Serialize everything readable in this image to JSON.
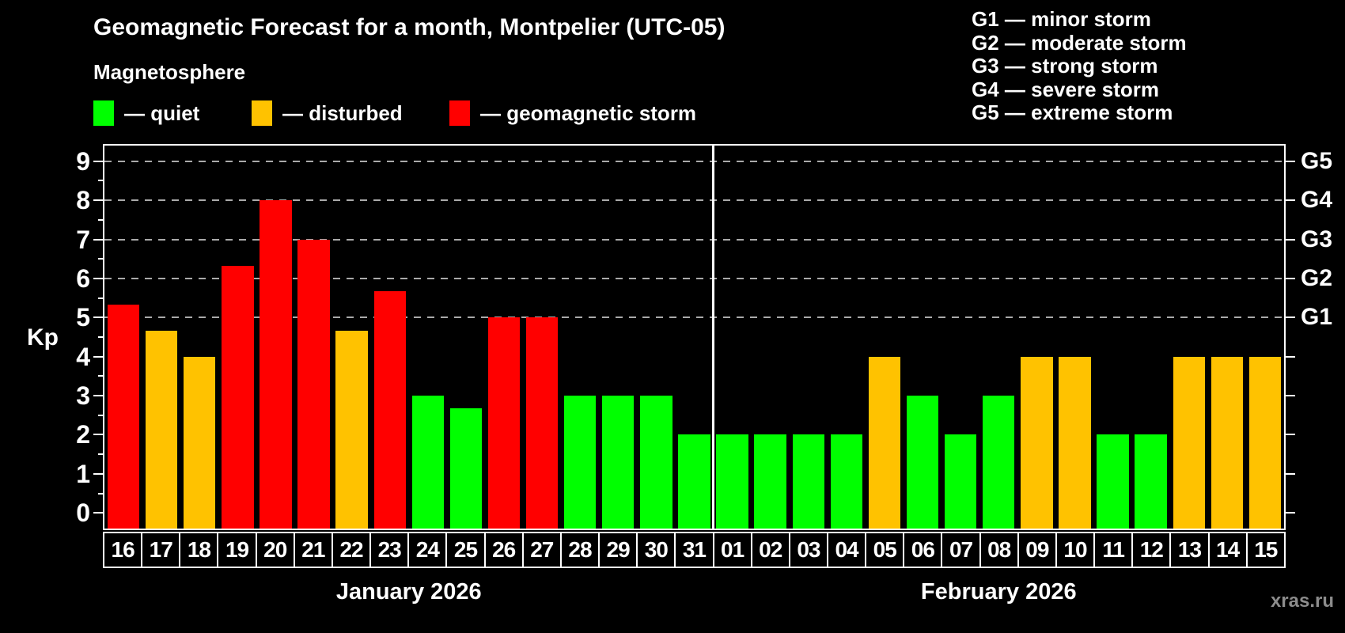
{
  "header": {
    "title": "Geomagnetic Forecast for a month, Montpelier (UTC-05)",
    "subtitle": "Magnetosphere"
  },
  "legend": {
    "items": [
      {
        "key": "quiet",
        "label": "— quiet",
        "color": "#00FF00"
      },
      {
        "key": "disturbed",
        "label": "— disturbed",
        "color": "#FFC200"
      },
      {
        "key": "storm",
        "label": "— geomagnetic storm",
        "color": "#FF0000"
      }
    ]
  },
  "g_legend": {
    "items": [
      {
        "text": "G1 — minor storm"
      },
      {
        "text": "G2 — moderate storm"
      },
      {
        "text": "G3 — strong storm"
      },
      {
        "text": "G4 — severe storm"
      },
      {
        "text": "G5 — extreme storm"
      }
    ]
  },
  "axes": {
    "y_label": "Kp",
    "y_ticks": [
      0,
      1,
      2,
      3,
      4,
      5,
      6,
      7,
      8,
      9
    ],
    "grid_levels": [
      5,
      6,
      7,
      8,
      9
    ],
    "right_labels": [
      {
        "text": "G1",
        "value": 5
      },
      {
        "text": "G2",
        "value": 6
      },
      {
        "text": "G3",
        "value": 7
      },
      {
        "text": "G4",
        "value": 8
      },
      {
        "text": "G5",
        "value": 9
      }
    ]
  },
  "colors": {
    "quiet": "#00FF00",
    "disturbed": "#FFC200",
    "storm": "#FF0000",
    "background": "#000000",
    "grid": "#AAAAAA",
    "frame": "#FFFFFF",
    "watermark": "#8C8C8C"
  },
  "watermark": "xras.ru",
  "chart_data": {
    "type": "bar",
    "title": "Geomagnetic Forecast for a month, Montpelier (UTC-05)",
    "ylabel": "Kp",
    "ylim": [
      -0.4,
      9.4
    ],
    "grid": "dashed horizontal at Kp 5-9 (G1-G5)",
    "months": [
      {
        "label": "January 2026",
        "days": [
          "16",
          "17",
          "18",
          "19",
          "20",
          "21",
          "22",
          "23",
          "24",
          "25",
          "26",
          "27",
          "28",
          "29",
          "30",
          "31"
        ],
        "values": [
          5.33,
          4.67,
          4.0,
          6.33,
          8.0,
          7.0,
          4.67,
          5.67,
          3.0,
          2.67,
          5.0,
          5.0,
          3.0,
          3.0,
          3.0,
          2.0
        ],
        "levels": [
          "storm",
          "disturbed",
          "disturbed",
          "storm",
          "storm",
          "storm",
          "disturbed",
          "storm",
          "quiet",
          "quiet",
          "storm",
          "storm",
          "quiet",
          "quiet",
          "quiet",
          "quiet"
        ]
      },
      {
        "label": "February 2026",
        "days": [
          "01",
          "02",
          "03",
          "04",
          "05",
          "06",
          "07",
          "08",
          "09",
          "10",
          "11",
          "12",
          "13",
          "14",
          "15"
        ],
        "values": [
          2.0,
          2.0,
          2.0,
          2.0,
          4.0,
          3.0,
          2.0,
          3.0,
          4.0,
          4.0,
          2.0,
          2.0,
          4.0,
          4.0,
          4.0
        ],
        "levels": [
          "quiet",
          "quiet",
          "quiet",
          "quiet",
          "disturbed",
          "quiet",
          "quiet",
          "quiet",
          "disturbed",
          "disturbed",
          "quiet",
          "quiet",
          "disturbed",
          "disturbed",
          "disturbed"
        ]
      }
    ]
  }
}
